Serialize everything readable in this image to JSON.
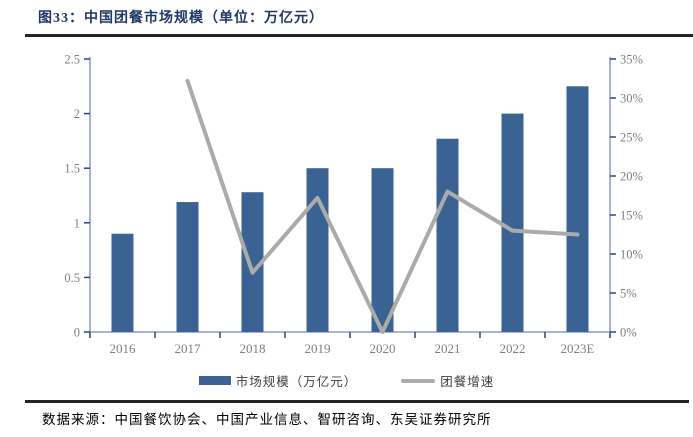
{
  "header": {
    "title": "图33：中国团餐市场规模（单位：万亿元）"
  },
  "chart_data": {
    "type": "combo",
    "title": "中国团餐市场规模（单位：万亿元）",
    "categories": [
      "2016",
      "2017",
      "2018",
      "2019",
      "2020",
      "2021",
      "2022",
      "2023E"
    ],
    "series": [
      {
        "name": "市场规模（万亿元）",
        "type": "bar",
        "axis": "left",
        "values": [
          0.9,
          1.19,
          1.28,
          1.5,
          1.5,
          1.77,
          2.0,
          2.25
        ]
      },
      {
        "name": "团餐增速",
        "type": "line",
        "axis": "right",
        "unit": "%",
        "values": [
          null,
          32.2,
          7.6,
          17.2,
          0.0,
          18.0,
          13.0,
          12.5
        ]
      }
    ],
    "left_axis": {
      "min": 0,
      "max": 2.5,
      "ticks": [
        "0",
        "0.5",
        "1",
        "1.5",
        "2",
        "2.5"
      ]
    },
    "right_axis": {
      "min": 0,
      "max": 35,
      "ticks": [
        "0%",
        "5%",
        "10%",
        "15%",
        "20%",
        "25%",
        "30%",
        "35%"
      ]
    },
    "grid": false,
    "legend_position": "bottom"
  },
  "legend": {
    "bar_label": "市场规模（万亿元）",
    "line_label": "团餐增速"
  },
  "footer": {
    "source": "数据来源：中国餐饮协会、中国产业信息、智研咨询、东吴证券研究所"
  },
  "colors": {
    "bar": "#3A6293",
    "line": "#ABABAB",
    "title": "#1F3864",
    "axis_line": "#8E9CC2",
    "tick": "#27497C",
    "axis_text": "#7F7F7F",
    "rule": "#262626"
  }
}
